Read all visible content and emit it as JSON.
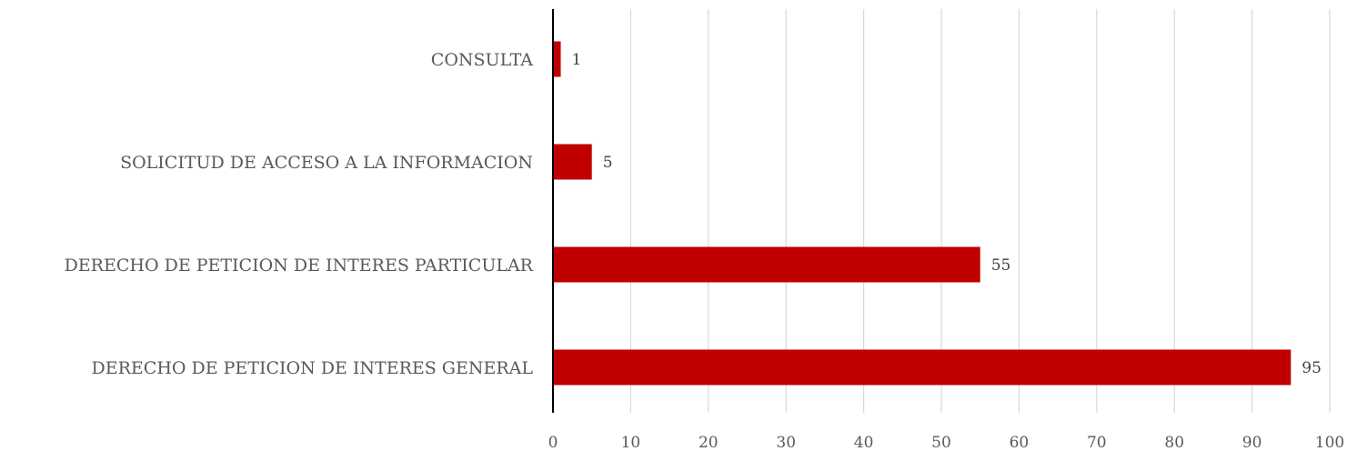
{
  "chart_data": {
    "type": "bar",
    "orientation": "horizontal",
    "categories": [
      "CONSULTA",
      "SOLICITUD DE ACCESO A LA INFORMACION",
      "DERECHO DE PETICION DE INTERES PARTICULAR",
      "DERECHO DE PETICION DE INTERES GENERAL"
    ],
    "values": [
      1,
      5,
      55,
      95
    ],
    "data_labels": [
      "1",
      "5",
      "55",
      "95"
    ],
    "xlim": [
      0,
      100
    ],
    "x_ticks": [
      0,
      10,
      20,
      30,
      40,
      50,
      60,
      70,
      80,
      90,
      100
    ],
    "x_tick_labels": [
      "0",
      "10",
      "20",
      "30",
      "40",
      "50",
      "60",
      "70",
      "80",
      "90",
      "100"
    ],
    "grid": true,
    "legend": "none",
    "title": "",
    "xlabel": "",
    "ylabel": "",
    "colors": {
      "bar": "#c00000",
      "grid": "#d9d9d9",
      "axis": "#000000",
      "text": "#595959"
    }
  }
}
